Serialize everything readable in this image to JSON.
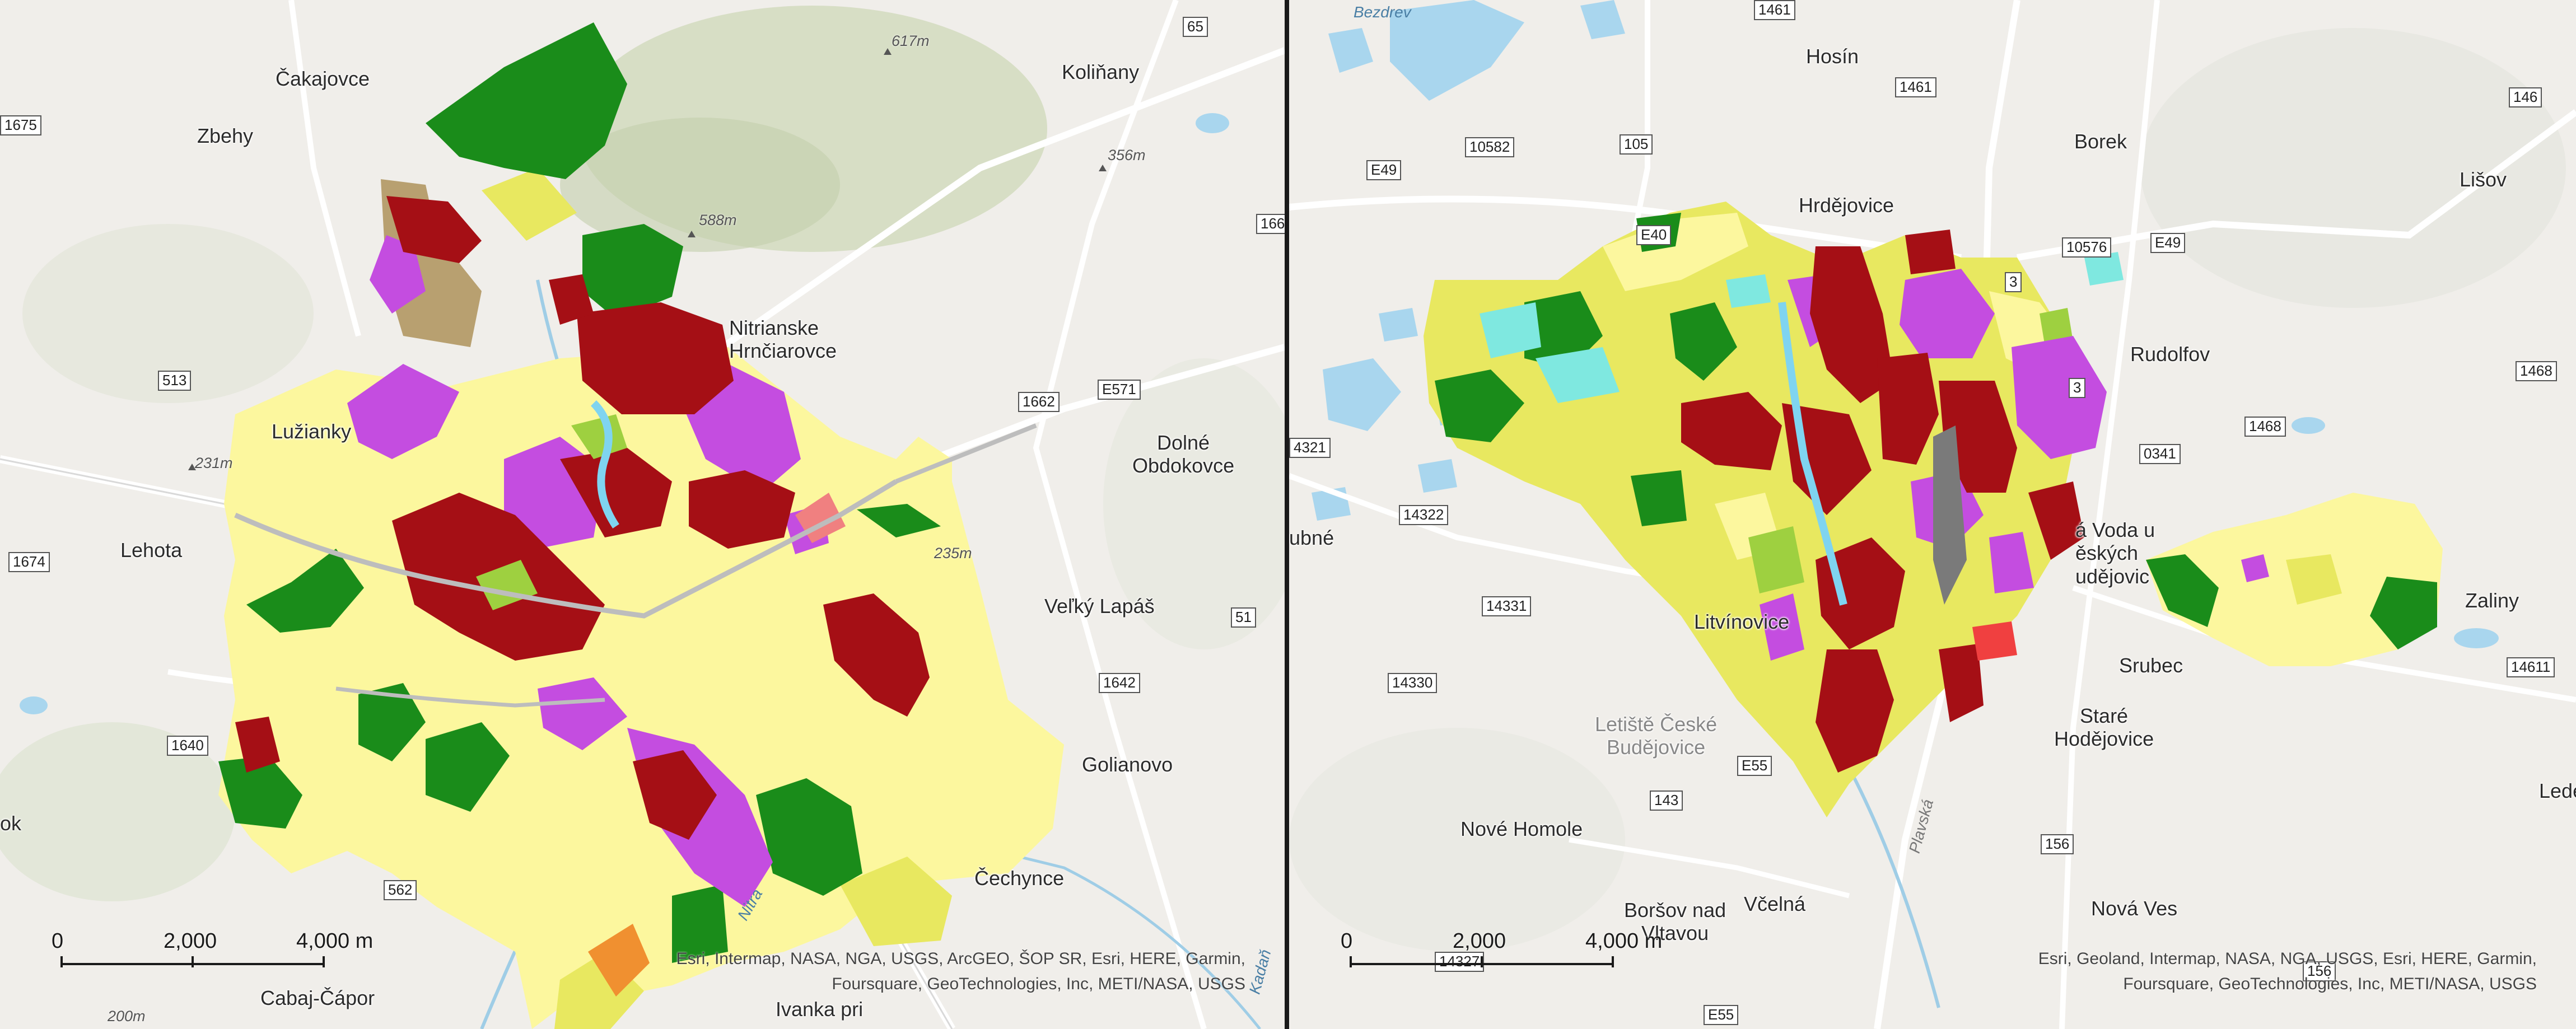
{
  "left": {
    "places": {
      "cakajovce": "Čakajovce",
      "zbehy": "Zbehy",
      "kolinany": "Koliňany",
      "nitrianske": "Nitrianske\nHrnčiarovce",
      "luzianky": "Lužianky",
      "dolne": "Dolné\nObdokovce",
      "lehota": "Lehota",
      "velky": "Veľký Lapáš",
      "golianovo": "Golianovo",
      "cechynce": "Čechynce",
      "cabaj": "Cabaj-Čápor",
      "ivanka": "Ivanka pri",
      "edge_k": "ok"
    },
    "elevations": {
      "e617": "617m",
      "e356": "356m",
      "e588": "588m",
      "e231": "231m",
      "e235": "235m",
      "e200": "200m"
    },
    "water": {
      "nitra": "Nitra",
      "radan": "Kadaň"
    },
    "roads": {
      "r65": "65",
      "r1675": "1675",
      "r166": "166",
      "r513": "513",
      "r1662": "1662",
      "rE571": "E571",
      "r1674": "1674",
      "r51": "51",
      "r1642": "1642",
      "r1640": "1640",
      "r562": "562"
    },
    "scale": {
      "t0": "0",
      "t1": "2,000",
      "t2": "4,000 m"
    },
    "attribution": {
      "line1": "Esri, Intermap, NASA, NGA, USGS, ArcGEO, ŠOP SR, Esri, HERE, Garmin,",
      "line2": "Foursquare, GeoTechnologies, Inc, METI/NASA, USGS"
    }
  },
  "right": {
    "places": {
      "hosin": "Hosín",
      "borek": "Borek",
      "hrdejovice": "Hrdějovice",
      "lisov": "Lišov",
      "rudolfov": "Rudolfov",
      "ubne": "ubné",
      "litvinovice": "Litvínovice",
      "nova_voda": "á Voda u\něských\nudějovic",
      "zaliny": "Zaliny",
      "srubec": "Srubec",
      "stare": "Staré\nHodějovice",
      "letiste": "Letiště České\nBudějovice",
      "nove_homole": "Nové Homole",
      "borsov": "Boršov nad\nVltavou",
      "vcelna": "Včelná",
      "nova_ves": "Nová Ves",
      "lede": "Lede"
    },
    "water": {
      "bezdrev": "Bezdrev",
      "planska": "Plavská"
    },
    "roads": {
      "r1461a": "1461",
      "r1461b": "1461",
      "r146": "146",
      "rE49a": "E49",
      "r10582": "10582",
      "r105": "105",
      "rE49b": "E49",
      "r10576": "10576",
      "rE49c": "E49",
      "r3": "3",
      "r1468a": "1468",
      "r1468b": "1468",
      "r0341": "0341",
      "r4321": "4321",
      "r14322": "14322",
      "r14331": "14331",
      "r14330": "14330",
      "r14611": "14611",
      "rE55a": "E55",
      "r143": "143",
      "r156a": "156",
      "r156b": "156",
      "r14327": "14327",
      "rE55b": "E55",
      "rE40": "E40",
      "r3b": "3"
    },
    "scale": {
      "t0": "0",
      "t1": "2,000",
      "t2": "4,000 m"
    },
    "attribution": {
      "line1": "Esri, Geoland, Intermap, NASA, NGA, USGS, Esri, HERE, Garmin,",
      "line2": "Foursquare, GeoTechnologies, Inc, METI/NASA, USGS"
    }
  },
  "colors": {
    "base": "#f0eeea",
    "dense_residential": "#a50f15",
    "commercial": "#c44de0",
    "low_density": "#fcf79e",
    "agriculture": "#e8e860",
    "forest": "#1a8c1a",
    "water": "#7fd4f0",
    "green_urban": "#9ed040",
    "road": "#ffffff"
  }
}
